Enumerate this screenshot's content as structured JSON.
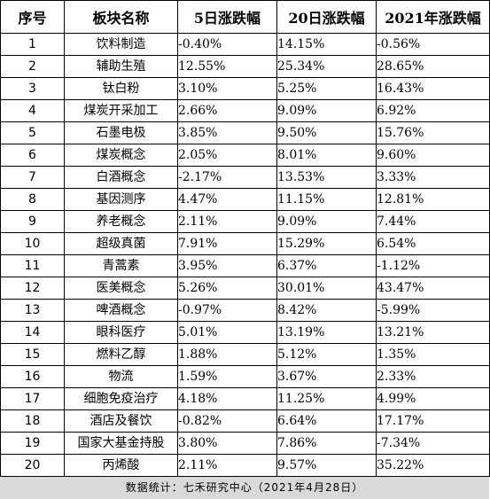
{
  "table": {
    "headers": {
      "seq": "序号",
      "name": "板块名称",
      "d5": "5日涨跌幅",
      "d20": "20日涨跌幅",
      "y2021": "2021年涨跌幅"
    },
    "rows": [
      {
        "seq": "1",
        "name": "饮料制造",
        "d5": "-0.40%",
        "d20": "14.15%",
        "y2021": "-0.56%"
      },
      {
        "seq": "2",
        "name": "辅助生殖",
        "d5": "12.55%",
        "d20": "25.34%",
        "y2021": "28.65%"
      },
      {
        "seq": "3",
        "name": "钛白粉",
        "d5": "3.10%",
        "d20": "5.25%",
        "y2021": "16.43%"
      },
      {
        "seq": "4",
        "name": "煤炭开采加工",
        "d5": "2.66%",
        "d20": "9.09%",
        "y2021": "6.92%"
      },
      {
        "seq": "5",
        "name": "石墨电极",
        "d5": "3.85%",
        "d20": "9.50%",
        "y2021": "15.76%"
      },
      {
        "seq": "6",
        "name": "煤炭概念",
        "d5": "2.05%",
        "d20": "8.01%",
        "y2021": "9.60%"
      },
      {
        "seq": "7",
        "name": "白酒概念",
        "d5": "-2.17%",
        "d20": "13.53%",
        "y2021": "3.33%"
      },
      {
        "seq": "8",
        "name": "基因测序",
        "d5": "4.47%",
        "d20": "11.15%",
        "y2021": "12.81%"
      },
      {
        "seq": "9",
        "name": "养老概念",
        "d5": "2.11%",
        "d20": "9.09%",
        "y2021": "7.44%"
      },
      {
        "seq": "10",
        "name": "超级真菌",
        "d5": "7.91%",
        "d20": "15.29%",
        "y2021": "6.54%"
      },
      {
        "seq": "11",
        "name": "青蒿素",
        "d5": "3.95%",
        "d20": "6.37%",
        "y2021": "-1.12%"
      },
      {
        "seq": "12",
        "name": "医美概念",
        "d5": "5.26%",
        "d20": "30.01%",
        "y2021": "43.47%"
      },
      {
        "seq": "13",
        "name": "啤酒概念",
        "d5": "-0.97%",
        "d20": "8.42%",
        "y2021": "-5.99%"
      },
      {
        "seq": "14",
        "name": "眼科医疗",
        "d5": "5.01%",
        "d20": "13.19%",
        "y2021": "13.21%"
      },
      {
        "seq": "15",
        "name": "燃料乙醇",
        "d5": "1.88%",
        "d20": "5.12%",
        "y2021": "1.35%"
      },
      {
        "seq": "16",
        "name": "物流",
        "d5": "1.59%",
        "d20": "3.67%",
        "y2021": "2.33%"
      },
      {
        "seq": "17",
        "name": "细胞免疫治疗",
        "d5": "4.18%",
        "d20": "11.25%",
        "y2021": "4.99%"
      },
      {
        "seq": "18",
        "name": "酒店及餐饮",
        "d5": "-0.82%",
        "d20": "6.64%",
        "y2021": "17.17%"
      },
      {
        "seq": "19",
        "name": "国家大基金持股",
        "d5": "3.80%",
        "d20": "7.86%",
        "y2021": "-7.34%"
      },
      {
        "seq": "20",
        "name": "丙烯酸",
        "d5": "2.11%",
        "d20": "9.57%",
        "y2021": "35.22%"
      }
    ]
  },
  "footer": {
    "note": "数据统计：七禾研究中心（2021年4月28日）"
  },
  "colors": {
    "footer_bg": "#d9d9d9",
    "border": "#000000"
  }
}
